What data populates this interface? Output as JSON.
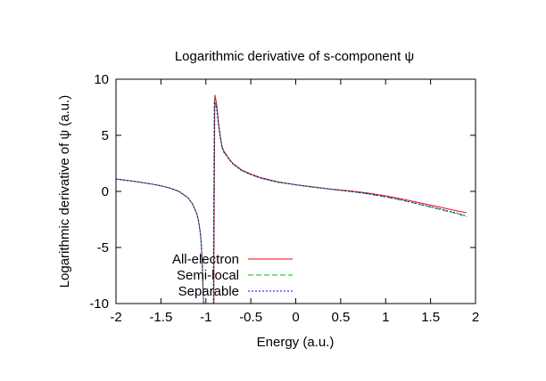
{
  "chart_data": {
    "type": "line",
    "title": "Logarithmic derivative of s-component ψ",
    "xlabel": "Energy (a.u.)",
    "ylabel": "Logarithmic derivative of ψ (a.u.)",
    "xlim": [
      -2,
      2
    ],
    "ylim": [
      -10,
      10
    ],
    "xticks": [
      "-2",
      "-1.5",
      "-1",
      "-0.5",
      "0",
      "0.5",
      "1",
      "1.5",
      "2"
    ],
    "yticks": [
      "-10",
      "-5",
      "0",
      "5",
      "10"
    ],
    "grid": false,
    "legend_position": "bottom-left",
    "series": [
      {
        "name": "All-electron",
        "color": "#ff0000",
        "dash": "solid",
        "segments": [
          [
            [
              -2.0,
              1.1
            ],
            [
              -1.8,
              0.9
            ],
            [
              -1.6,
              0.65
            ],
            [
              -1.5,
              0.5
            ],
            [
              -1.4,
              0.3
            ],
            [
              -1.3,
              0.0
            ],
            [
              -1.2,
              -0.55
            ],
            [
              -1.15,
              -1.1
            ],
            [
              -1.1,
              -2.0
            ],
            [
              -1.08,
              -2.7
            ],
            [
              -1.06,
              -3.8
            ],
            [
              -1.05,
              -4.8
            ],
            [
              -1.04,
              -6.5
            ],
            [
              -1.03,
              -9.0
            ],
            [
              -1.025,
              -10.0
            ]
          ],
          [
            [
              -0.91,
              -10.0
            ],
            [
              -0.91,
              -6.0
            ],
            [
              -0.905,
              1.0
            ],
            [
              -0.9,
              8.6
            ],
            [
              -0.88,
              7.8
            ],
            [
              -0.86,
              6.2
            ],
            [
              -0.84,
              5.0
            ],
            [
              -0.82,
              4.0
            ],
            [
              -0.8,
              3.6
            ],
            [
              -0.75,
              3.0
            ],
            [
              -0.7,
              2.5
            ],
            [
              -0.6,
              1.9
            ],
            [
              -0.5,
              1.55
            ],
            [
              -0.4,
              1.25
            ],
            [
              -0.2,
              0.85
            ],
            [
              0.0,
              0.6
            ],
            [
              0.2,
              0.4
            ],
            [
              0.4,
              0.2
            ],
            [
              0.6,
              0.05
            ],
            [
              0.8,
              -0.15
            ],
            [
              1.0,
              -0.4
            ],
            [
              1.2,
              -0.7
            ],
            [
              1.4,
              -1.05
            ],
            [
              1.6,
              -1.4
            ],
            [
              1.8,
              -1.75
            ],
            [
              1.9,
              -1.9
            ]
          ]
        ]
      },
      {
        "name": "Semi-local",
        "color": "#00c000",
        "dash": "6,3",
        "segments": [
          [
            [
              -2.0,
              1.1
            ],
            [
              -1.8,
              0.9
            ],
            [
              -1.6,
              0.65
            ],
            [
              -1.5,
              0.5
            ],
            [
              -1.4,
              0.3
            ],
            [
              -1.3,
              0.0
            ],
            [
              -1.2,
              -0.55
            ],
            [
              -1.15,
              -1.1
            ],
            [
              -1.1,
              -2.0
            ],
            [
              -1.08,
              -2.7
            ],
            [
              -1.06,
              -3.8
            ],
            [
              -1.05,
              -4.8
            ],
            [
              -1.04,
              -6.5
            ],
            [
              -1.03,
              -9.0
            ],
            [
              -1.025,
              -10.0
            ]
          ],
          [
            [
              -0.915,
              -10.0
            ],
            [
              -0.915,
              -6.0
            ],
            [
              -0.91,
              1.0
            ],
            [
              -0.905,
              8.2
            ],
            [
              -0.88,
              7.5
            ],
            [
              -0.86,
              6.0
            ],
            [
              -0.84,
              4.9
            ],
            [
              -0.82,
              3.9
            ],
            [
              -0.8,
              3.5
            ],
            [
              -0.75,
              2.95
            ],
            [
              -0.7,
              2.45
            ],
            [
              -0.6,
              1.85
            ],
            [
              -0.5,
              1.5
            ],
            [
              -0.4,
              1.2
            ],
            [
              -0.2,
              0.82
            ],
            [
              0.0,
              0.58
            ],
            [
              0.2,
              0.38
            ],
            [
              0.4,
              0.18
            ],
            [
              0.6,
              0.0
            ],
            [
              0.8,
              -0.22
            ],
            [
              1.0,
              -0.5
            ],
            [
              1.2,
              -0.82
            ],
            [
              1.4,
              -1.2
            ],
            [
              1.6,
              -1.6
            ],
            [
              1.8,
              -2.0
            ],
            [
              1.9,
              -2.25
            ]
          ]
        ]
      },
      {
        "name": "Separable",
        "color": "#0000ff",
        "dash": "2,2",
        "segments": [
          [
            [
              -2.0,
              1.1
            ],
            [
              -1.8,
              0.9
            ],
            [
              -1.6,
              0.65
            ],
            [
              -1.5,
              0.5
            ],
            [
              -1.4,
              0.3
            ],
            [
              -1.3,
              0.0
            ],
            [
              -1.2,
              -0.55
            ],
            [
              -1.15,
              -1.1
            ],
            [
              -1.1,
              -2.0
            ],
            [
              -1.08,
              -2.7
            ],
            [
              -1.06,
              -3.8
            ],
            [
              -1.05,
              -4.8
            ],
            [
              -1.04,
              -6.5
            ],
            [
              -1.03,
              -9.0
            ],
            [
              -1.025,
              -10.0
            ]
          ],
          [
            [
              -0.915,
              -10.0
            ],
            [
              -0.915,
              -6.0
            ],
            [
              -0.91,
              1.0
            ],
            [
              -0.905,
              8.0
            ],
            [
              -0.88,
              7.4
            ],
            [
              -0.86,
              5.9
            ],
            [
              -0.84,
              4.85
            ],
            [
              -0.82,
              3.9
            ],
            [
              -0.8,
              3.5
            ],
            [
              -0.75,
              2.95
            ],
            [
              -0.7,
              2.45
            ],
            [
              -0.6,
              1.85
            ],
            [
              -0.5,
              1.5
            ],
            [
              -0.4,
              1.2
            ],
            [
              -0.2,
              0.82
            ],
            [
              0.0,
              0.58
            ],
            [
              0.2,
              0.38
            ],
            [
              0.4,
              0.18
            ],
            [
              0.6,
              0.0
            ],
            [
              0.8,
              -0.2
            ],
            [
              1.0,
              -0.48
            ],
            [
              1.2,
              -0.8
            ],
            [
              1.4,
              -1.18
            ],
            [
              1.6,
              -1.56
            ],
            [
              1.8,
              -1.95
            ],
            [
              1.9,
              -2.2
            ]
          ]
        ]
      }
    ]
  }
}
